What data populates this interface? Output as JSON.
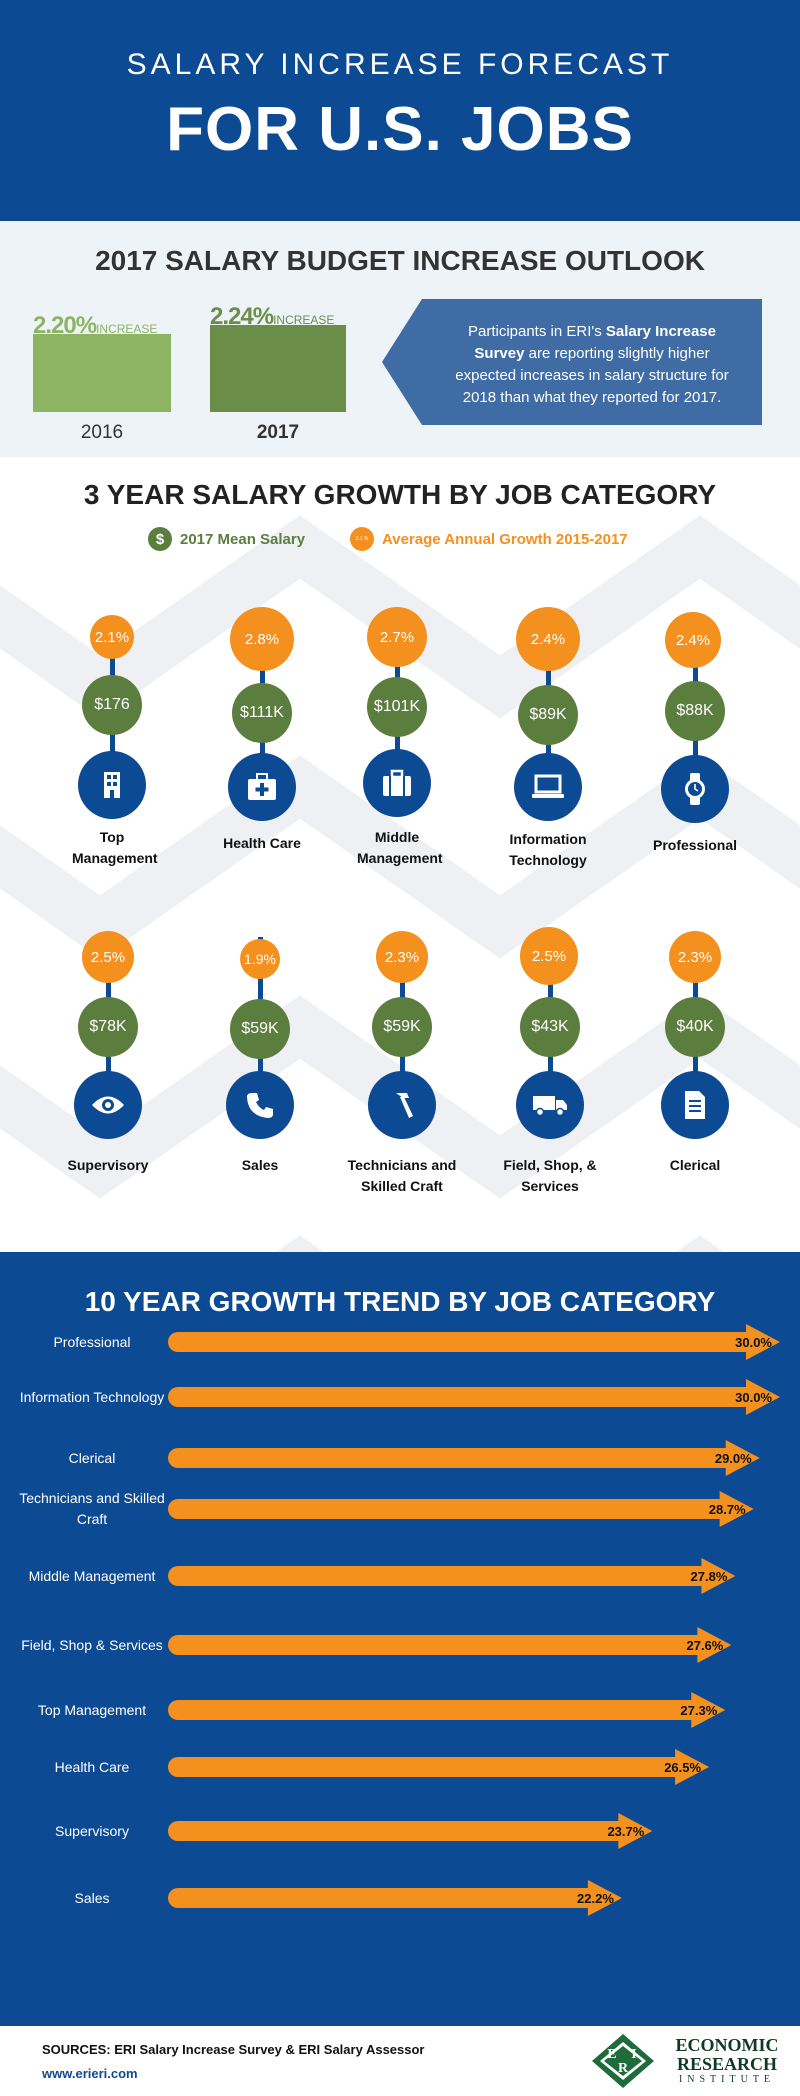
{
  "header": {
    "line1": "SALARY INCREASE FORECAST",
    "line2": "FOR U.S. JOBS"
  },
  "budget": {
    "title": "2017 SALARY BUDGET INCREASE OUTLOOK",
    "bars": [
      {
        "value": "2.20%",
        "suffix": "INCREASE",
        "year": "2016",
        "color": "#8db462"
      },
      {
        "value": "2.24%",
        "suffix": "INCREASE",
        "year": "2017",
        "color": "#6a8e48"
      }
    ],
    "callout": {
      "pre": "Participants in ERI's ",
      "bold": "Salary Increase Survey",
      "post": " are reporting slightly higher expected increases in salary structure for 2018 than what they reported for 2017."
    }
  },
  "growth": {
    "title": "3 YEAR SALARY GROWTH BY JOB CATEGORY",
    "legend_salary": "2017 Mean Salary",
    "legend_salary_icon": "$",
    "legend_growth": "Average Annual Growth 2015-2017",
    "legend_growth_icon": "2.1 %",
    "categories": [
      {
        "name": "Top Management",
        "rate": "2.1%",
        "salary": "$176",
        "icon": "building-icon"
      },
      {
        "name": "Health Care",
        "rate": "2.8%",
        "salary": "$111K",
        "icon": "medical-kit-icon"
      },
      {
        "name": "Middle Management",
        "rate": "2.7%",
        "salary": "$101K",
        "icon": "briefcase-icon"
      },
      {
        "name": "Information Technology",
        "rate": "2.4%",
        "salary": "$89K",
        "icon": "laptop-icon"
      },
      {
        "name": "Professional",
        "rate": "2.4%",
        "salary": "$88K",
        "icon": "watch-icon"
      },
      {
        "name": "Supervisory",
        "rate": "2.5%",
        "salary": "$78K",
        "icon": "eye-icon"
      },
      {
        "name": "Sales",
        "rate": "1.9%",
        "salary": "$59K",
        "icon": "phone-icon"
      },
      {
        "name": "Technicians and Skilled Craft",
        "rate": "2.3%",
        "salary": "$59K",
        "icon": "hammer-icon"
      },
      {
        "name": "Field, Shop, & Services",
        "rate": "2.5%",
        "salary": "$43K",
        "icon": "truck-icon"
      },
      {
        "name": "Clerical",
        "rate": "2.3%",
        "salary": "$40K",
        "icon": "document-icon"
      }
    ]
  },
  "trend": {
    "title": "10 YEAR GROWTH TREND BY JOB CATEGORY",
    "value_labels": [
      "30.0%",
      "30.0%",
      "29.0%",
      "28.7%",
      "27.8%",
      "27.6%",
      "27.3%",
      "26.5%",
      "23.7%",
      "22.2%"
    ]
  },
  "chart_data": {
    "type": "bar",
    "title": "10 YEAR GROWTH TREND BY JOB CATEGORY",
    "categories": [
      "Professional",
      "Information Technology",
      "Clerical",
      "Technicians and Skilled Craft",
      "Middle Management",
      "Field, Shop & Services",
      "Top Management",
      "Health Care",
      "Supervisory",
      "Sales"
    ],
    "values": [
      30.0,
      30.0,
      29.0,
      28.7,
      27.8,
      27.6,
      27.3,
      26.5,
      23.7,
      22.2
    ],
    "orientation": "horizontal",
    "bar_color": "#f4901e"
  },
  "colors": {
    "navy": "#0d4a94",
    "orange": "#f4901e",
    "green": "#5b7e3f",
    "callout": "#3f6ca5"
  },
  "footer": {
    "sources": "SOURCES: ERI Salary Increase Survey & ERI Salary Assessor",
    "url": "www.erieri.com",
    "logo_line1": "ECONOMIC",
    "logo_line2": "RESEARCH",
    "logo_line3": "INSTITUTE",
    "logo_letters": "ERI"
  }
}
